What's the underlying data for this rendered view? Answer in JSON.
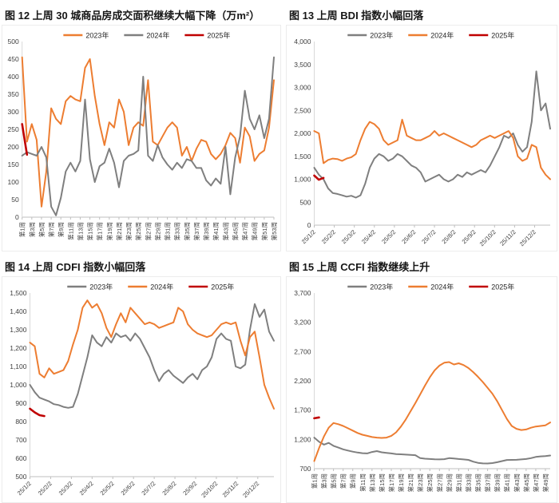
{
  "page": {
    "background": "#ffffff"
  },
  "chart_data": [
    {
      "id": "fig12",
      "type": "line",
      "title": "图 12 上周 30 城商品房成交面积继续大幅下降（万m²）",
      "ylim": [
        0,
        500
      ],
      "ytick_step": 50,
      "n_points": 53,
      "tick_step": 2,
      "x_rotation": "vertical",
      "grid": false,
      "legend_position": "top-center",
      "x_labels": [
        "第1周",
        "第3周",
        "第5周",
        "第7周",
        "第9周",
        "第11周",
        "第13周",
        "第15周",
        "第17周",
        "第19周",
        "第21周",
        "第23周",
        "第25周",
        "第27周",
        "第29周",
        "第31周",
        "第33周",
        "第35周",
        "第37周",
        "第39周",
        "第41周",
        "第43周",
        "第45周",
        "第47周",
        "第49周",
        "第51周",
        "第53周"
      ],
      "series": [
        {
          "name": "2023年",
          "color": "#ED7D31",
          "values": [
            455,
            215,
            265,
            220,
            30,
            130,
            310,
            280,
            265,
            330,
            345,
            335,
            330,
            425,
            450,
            345,
            265,
            205,
            270,
            255,
            335,
            300,
            205,
            255,
            270,
            260,
            390,
            215,
            205,
            230,
            255,
            270,
            255,
            175,
            200,
            160,
            195,
            220,
            215,
            180,
            165,
            180,
            205,
            240,
            225,
            155,
            255,
            230,
            160,
            180,
            190,
            255,
            390
          ]
        },
        {
          "name": "2024年",
          "color": "#7F7F7F",
          "values": [
            175,
            185,
            180,
            175,
            200,
            170,
            30,
            5,
            55,
            130,
            155,
            130,
            160,
            335,
            165,
            100,
            145,
            155,
            195,
            155,
            85,
            160,
            175,
            180,
            190,
            400,
            175,
            160,
            205,
            170,
            150,
            135,
            155,
            140,
            165,
            160,
            140,
            140,
            105,
            90,
            110,
            95,
            200,
            65,
            170,
            230,
            360,
            280,
            250,
            290,
            225,
            280,
            455
          ]
        },
        {
          "name": "2025年",
          "color": "#C00000",
          "values": [
            265,
            178
          ]
        }
      ]
    },
    {
      "id": "fig13",
      "type": "line",
      "title": "图 13 上周 BDI 指数小幅回落",
      "ylim": [
        0,
        4000
      ],
      "ytick_step": 500,
      "n_points": 52,
      "tick_step": 4.33,
      "x_rotation": "diag",
      "grid": false,
      "legend_position": "top-center",
      "x_labels": [
        "25/1/2",
        "25/2/2",
        "25/3/2",
        "25/4/2",
        "25/5/2",
        "25/6/2",
        "25/7/2",
        "25/8/2",
        "25/9/2",
        "25/10/2",
        "25/11/2",
        "25/12/2"
      ],
      "series": [
        {
          "name": "2023年",
          "color": "#7F7F7F",
          "values": [
            1250,
            1100,
            1000,
            800,
            700,
            680,
            650,
            620,
            640,
            600,
            650,
            900,
            1250,
            1450,
            1550,
            1500,
            1400,
            1450,
            1550,
            1500,
            1400,
            1300,
            1250,
            1150,
            950,
            1000,
            1050,
            1100,
            1000,
            950,
            1000,
            1100,
            1050,
            1150,
            1100,
            1150,
            1200,
            1150,
            1300,
            1500,
            1700,
            1950,
            1900,
            2000,
            1750,
            1600,
            1700,
            2250,
            3350,
            2500,
            2650,
            2100
          ]
        },
        {
          "name": "2024年",
          "color": "#ED7D31",
          "values": [
            2050,
            2000,
            1350,
            1420,
            1450,
            1440,
            1400,
            1450,
            1480,
            1550,
            1850,
            2100,
            2250,
            2200,
            2100,
            1850,
            1750,
            1800,
            1850,
            2300,
            1950,
            1900,
            1850,
            1850,
            1900,
            1950,
            2050,
            1950,
            2000,
            1950,
            1900,
            1850,
            1800,
            1750,
            1700,
            1750,
            1850,
            1900,
            1950,
            1900,
            1950,
            2000,
            2050,
            1900,
            1500,
            1400,
            1450,
            1750,
            1700,
            1250,
            1100,
            1000
          ]
        },
        {
          "name": "2025年",
          "color": "#C00000",
          "values": [
            1080,
            990,
            1030
          ]
        }
      ]
    },
    {
      "id": "fig14",
      "type": "line",
      "title": "图 14 上周 CDFI 指数小幅回落",
      "ylim": [
        500,
        1500
      ],
      "ytick_step": 100,
      "n_points": 52,
      "tick_step": 4.33,
      "x_rotation": "diag",
      "grid": false,
      "legend_position": "top-center",
      "x_labels": [
        "25/1/2",
        "25/2/2",
        "25/3/2",
        "25/4/2",
        "25/5/2",
        "25/6/2",
        "25/7/2",
        "25/8/2",
        "25/9/2",
        "25/10/2",
        "25/11/2",
        "25/12/2"
      ],
      "series": [
        {
          "name": "2023年",
          "color": "#7F7F7F",
          "values": [
            1000,
            960,
            930,
            920,
            910,
            895,
            890,
            880,
            875,
            880,
            950,
            1050,
            1150,
            1270,
            1230,
            1210,
            1260,
            1230,
            1280,
            1260,
            1270,
            1240,
            1280,
            1250,
            1200,
            1150,
            1080,
            1020,
            1060,
            1080,
            1050,
            1030,
            1010,
            1040,
            1060,
            1030,
            1080,
            1100,
            1150,
            1250,
            1280,
            1250,
            1240,
            1100,
            1090,
            1110,
            1300,
            1440,
            1370,
            1410,
            1290,
            1240
          ]
        },
        {
          "name": "2024年",
          "color": "#ED7D31",
          "values": [
            1230,
            1210,
            1060,
            1040,
            1090,
            1060,
            1070,
            1080,
            1130,
            1220,
            1300,
            1420,
            1460,
            1420,
            1440,
            1390,
            1310,
            1260,
            1330,
            1390,
            1340,
            1420,
            1390,
            1360,
            1330,
            1340,
            1330,
            1310,
            1320,
            1330,
            1340,
            1420,
            1400,
            1330,
            1300,
            1280,
            1270,
            1260,
            1270,
            1300,
            1330,
            1340,
            1330,
            1340,
            1240,
            1160,
            1260,
            1290,
            1150,
            1000,
            930,
            870
          ]
        },
        {
          "name": "2025年",
          "color": "#C00000",
          "values": [
            870,
            850,
            835,
            830
          ]
        }
      ]
    },
    {
      "id": "fig15",
      "type": "line",
      "title": "图 15 上周 CCFI 指数继续上升",
      "ylim": [
        700,
        3700
      ],
      "ytick_step": 500,
      "n_points": 50,
      "tick_step": 2,
      "x_rotation": "vertical",
      "grid": false,
      "legend_position": "top-center",
      "x_labels": [
        "第1周",
        "第3周",
        "第5周",
        "第7周",
        "第9周",
        "第11周",
        "第13周",
        "第15周",
        "第17周",
        "第19周",
        "第21周",
        "第23周",
        "第25周",
        "第27周",
        "第29周",
        "第31周",
        "第33周",
        "第35周",
        "第37周",
        "第39周",
        "第41周",
        "第43周",
        "第45周",
        "第47周",
        "第49周"
      ],
      "series": [
        {
          "name": "2023年",
          "color": "#7F7F7F",
          "values": [
            1230,
            1160,
            1110,
            1140,
            1090,
            1060,
            1030,
            1010,
            990,
            975,
            965,
            960,
            985,
            1000,
            980,
            970,
            960,
            950,
            945,
            940,
            935,
            930,
            880,
            870,
            865,
            860,
            858,
            862,
            880,
            875,
            865,
            858,
            850,
            820,
            800,
            790,
            788,
            795,
            810,
            830,
            848,
            850,
            852,
            858,
            865,
            880,
            900,
            910,
            915,
            925
          ]
        },
        {
          "name": "2024年",
          "color": "#ED7D31",
          "values": [
            830,
            1050,
            1250,
            1400,
            1480,
            1460,
            1430,
            1390,
            1350,
            1310,
            1280,
            1260,
            1240,
            1230,
            1225,
            1230,
            1260,
            1320,
            1420,
            1540,
            1680,
            1820,
            1970,
            2120,
            2260,
            2380,
            2460,
            2510,
            2520,
            2480,
            2500,
            2470,
            2420,
            2350,
            2270,
            2180,
            2080,
            1980,
            1850,
            1700,
            1550,
            1430,
            1380,
            1360,
            1370,
            1400,
            1420,
            1430,
            1440,
            1490
          ]
        },
        {
          "name": "2025年",
          "color": "#C00000",
          "values": [
            1560,
            1575
          ]
        }
      ]
    }
  ]
}
